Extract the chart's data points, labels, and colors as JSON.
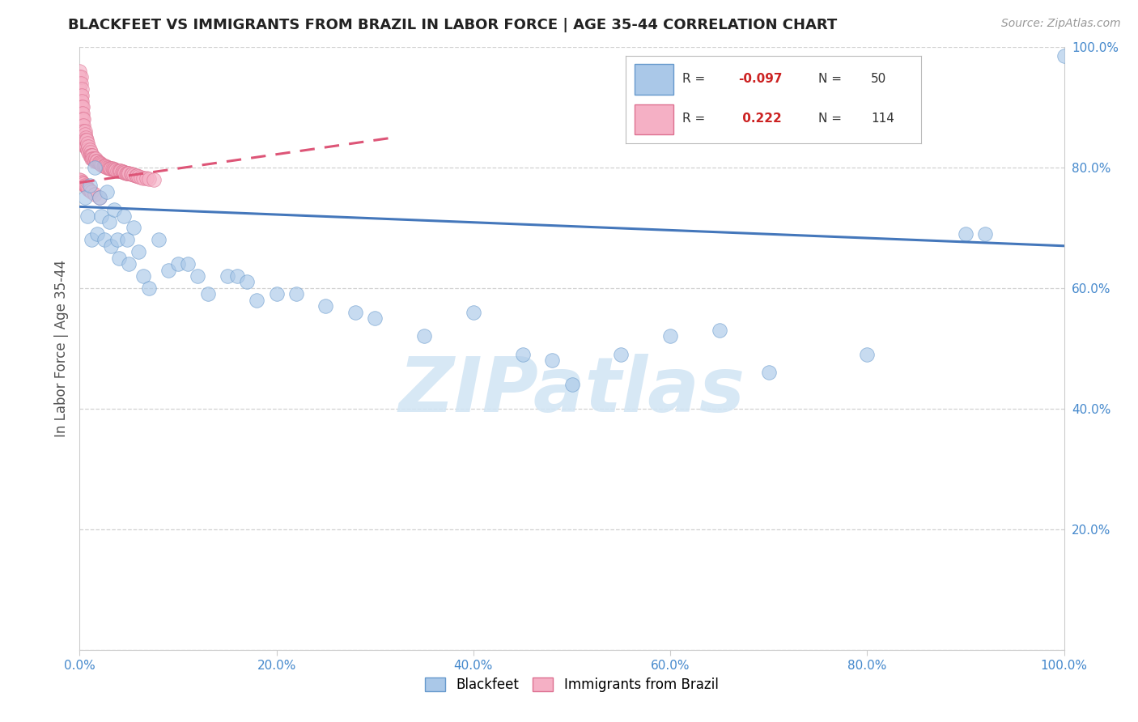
{
  "title": "BLACKFEET VS IMMIGRANTS FROM BRAZIL IN LABOR FORCE | AGE 35-44 CORRELATION CHART",
  "source_text": "Source: ZipAtlas.com",
  "ylabel": "In Labor Force | Age 35-44",
  "xlim": [
    0,
    1
  ],
  "ylim": [
    0,
    1
  ],
  "background_color": "#ffffff",
  "grid_color": "#cccccc",
  "blackfeet_color": "#aac8e8",
  "blackfeet_edge": "#6699cc",
  "brazil_color": "#f5b0c5",
  "brazil_edge": "#dd7090",
  "trend_blue_color": "#4477bb",
  "trend_pink_color": "#dd5577",
  "blackfeet_R": -0.097,
  "blackfeet_N": 50,
  "brazil_R": 0.222,
  "brazil_N": 114,
  "blue_trend": [
    0.0,
    1.0,
    0.735,
    0.67
  ],
  "pink_trend": [
    0.0,
    0.32,
    0.775,
    0.85
  ],
  "blackfeet_x": [
    0.005,
    0.008,
    0.01,
    0.012,
    0.015,
    0.018,
    0.02,
    0.022,
    0.025,
    0.028,
    0.03,
    0.032,
    0.035,
    0.038,
    0.04,
    0.045,
    0.048,
    0.05,
    0.055,
    0.06,
    0.065,
    0.07,
    0.08,
    0.09,
    0.1,
    0.11,
    0.12,
    0.13,
    0.15,
    0.16,
    0.17,
    0.18,
    0.2,
    0.22,
    0.25,
    0.28,
    0.3,
    0.35,
    0.4,
    0.45,
    0.48,
    0.5,
    0.55,
    0.6,
    0.65,
    0.7,
    0.8,
    0.9,
    0.92,
    1.0
  ],
  "blackfeet_y": [
    0.75,
    0.72,
    0.77,
    0.68,
    0.8,
    0.69,
    0.75,
    0.72,
    0.68,
    0.76,
    0.71,
    0.67,
    0.73,
    0.68,
    0.65,
    0.72,
    0.68,
    0.64,
    0.7,
    0.66,
    0.62,
    0.6,
    0.68,
    0.63,
    0.64,
    0.64,
    0.62,
    0.59,
    0.62,
    0.62,
    0.61,
    0.58,
    0.59,
    0.59,
    0.57,
    0.56,
    0.55,
    0.52,
    0.56,
    0.49,
    0.48,
    0.44,
    0.49,
    0.52,
    0.53,
    0.46,
    0.49,
    0.69,
    0.69,
    0.985
  ],
  "brazil_x": [
    0.0,
    0.0,
    0.0,
    0.0,
    0.0,
    0.001,
    0.001,
    0.001,
    0.001,
    0.001,
    0.001,
    0.001,
    0.001,
    0.002,
    0.002,
    0.002,
    0.002,
    0.002,
    0.002,
    0.002,
    0.002,
    0.003,
    0.003,
    0.003,
    0.003,
    0.003,
    0.004,
    0.004,
    0.004,
    0.004,
    0.004,
    0.005,
    0.005,
    0.005,
    0.005,
    0.006,
    0.006,
    0.006,
    0.007,
    0.007,
    0.008,
    0.008,
    0.009,
    0.009,
    0.01,
    0.01,
    0.011,
    0.011,
    0.012,
    0.012,
    0.013,
    0.013,
    0.014,
    0.015,
    0.015,
    0.016,
    0.017,
    0.018,
    0.019,
    0.02,
    0.021,
    0.022,
    0.023,
    0.024,
    0.025,
    0.026,
    0.027,
    0.028,
    0.029,
    0.03,
    0.031,
    0.032,
    0.033,
    0.034,
    0.035,
    0.036,
    0.037,
    0.038,
    0.04,
    0.041,
    0.042,
    0.043,
    0.044,
    0.045,
    0.046,
    0.047,
    0.048,
    0.049,
    0.05,
    0.052,
    0.053,
    0.055,
    0.057,
    0.058,
    0.06,
    0.062,
    0.065,
    0.068,
    0.07,
    0.075,
    0.0,
    0.001,
    0.002,
    0.003,
    0.004,
    0.005,
    0.006,
    0.007,
    0.008,
    0.009,
    0.01,
    0.012,
    0.015,
    0.02
  ],
  "brazil_y": [
    0.96,
    0.94,
    0.95,
    0.93,
    0.92,
    0.95,
    0.94,
    0.92,
    0.91,
    0.9,
    0.87,
    0.89,
    0.88,
    0.93,
    0.92,
    0.91,
    0.9,
    0.88,
    0.89,
    0.87,
    0.86,
    0.9,
    0.89,
    0.88,
    0.87,
    0.86,
    0.88,
    0.87,
    0.86,
    0.85,
    0.84,
    0.86,
    0.855,
    0.845,
    0.835,
    0.85,
    0.845,
    0.835,
    0.845,
    0.835,
    0.84,
    0.83,
    0.835,
    0.825,
    0.83,
    0.82,
    0.825,
    0.82,
    0.82,
    0.815,
    0.82,
    0.815,
    0.815,
    0.815,
    0.81,
    0.815,
    0.81,
    0.81,
    0.808,
    0.808,
    0.806,
    0.805,
    0.804,
    0.803,
    0.803,
    0.802,
    0.801,
    0.8,
    0.8,
    0.799,
    0.799,
    0.798,
    0.798,
    0.797,
    0.797,
    0.796,
    0.796,
    0.795,
    0.795,
    0.794,
    0.794,
    0.793,
    0.793,
    0.792,
    0.792,
    0.791,
    0.791,
    0.79,
    0.79,
    0.789,
    0.789,
    0.788,
    0.787,
    0.786,
    0.785,
    0.784,
    0.783,
    0.782,
    0.781,
    0.78,
    0.78,
    0.778,
    0.776,
    0.774,
    0.773,
    0.771,
    0.769,
    0.768,
    0.766,
    0.764,
    0.762,
    0.76,
    0.755,
    0.75
  ],
  "watermark_text": "ZIPatlas",
  "watermark_color": "#d0e4f4",
  "tick_color": "#4488cc",
  "spine_color": "#cccccc"
}
